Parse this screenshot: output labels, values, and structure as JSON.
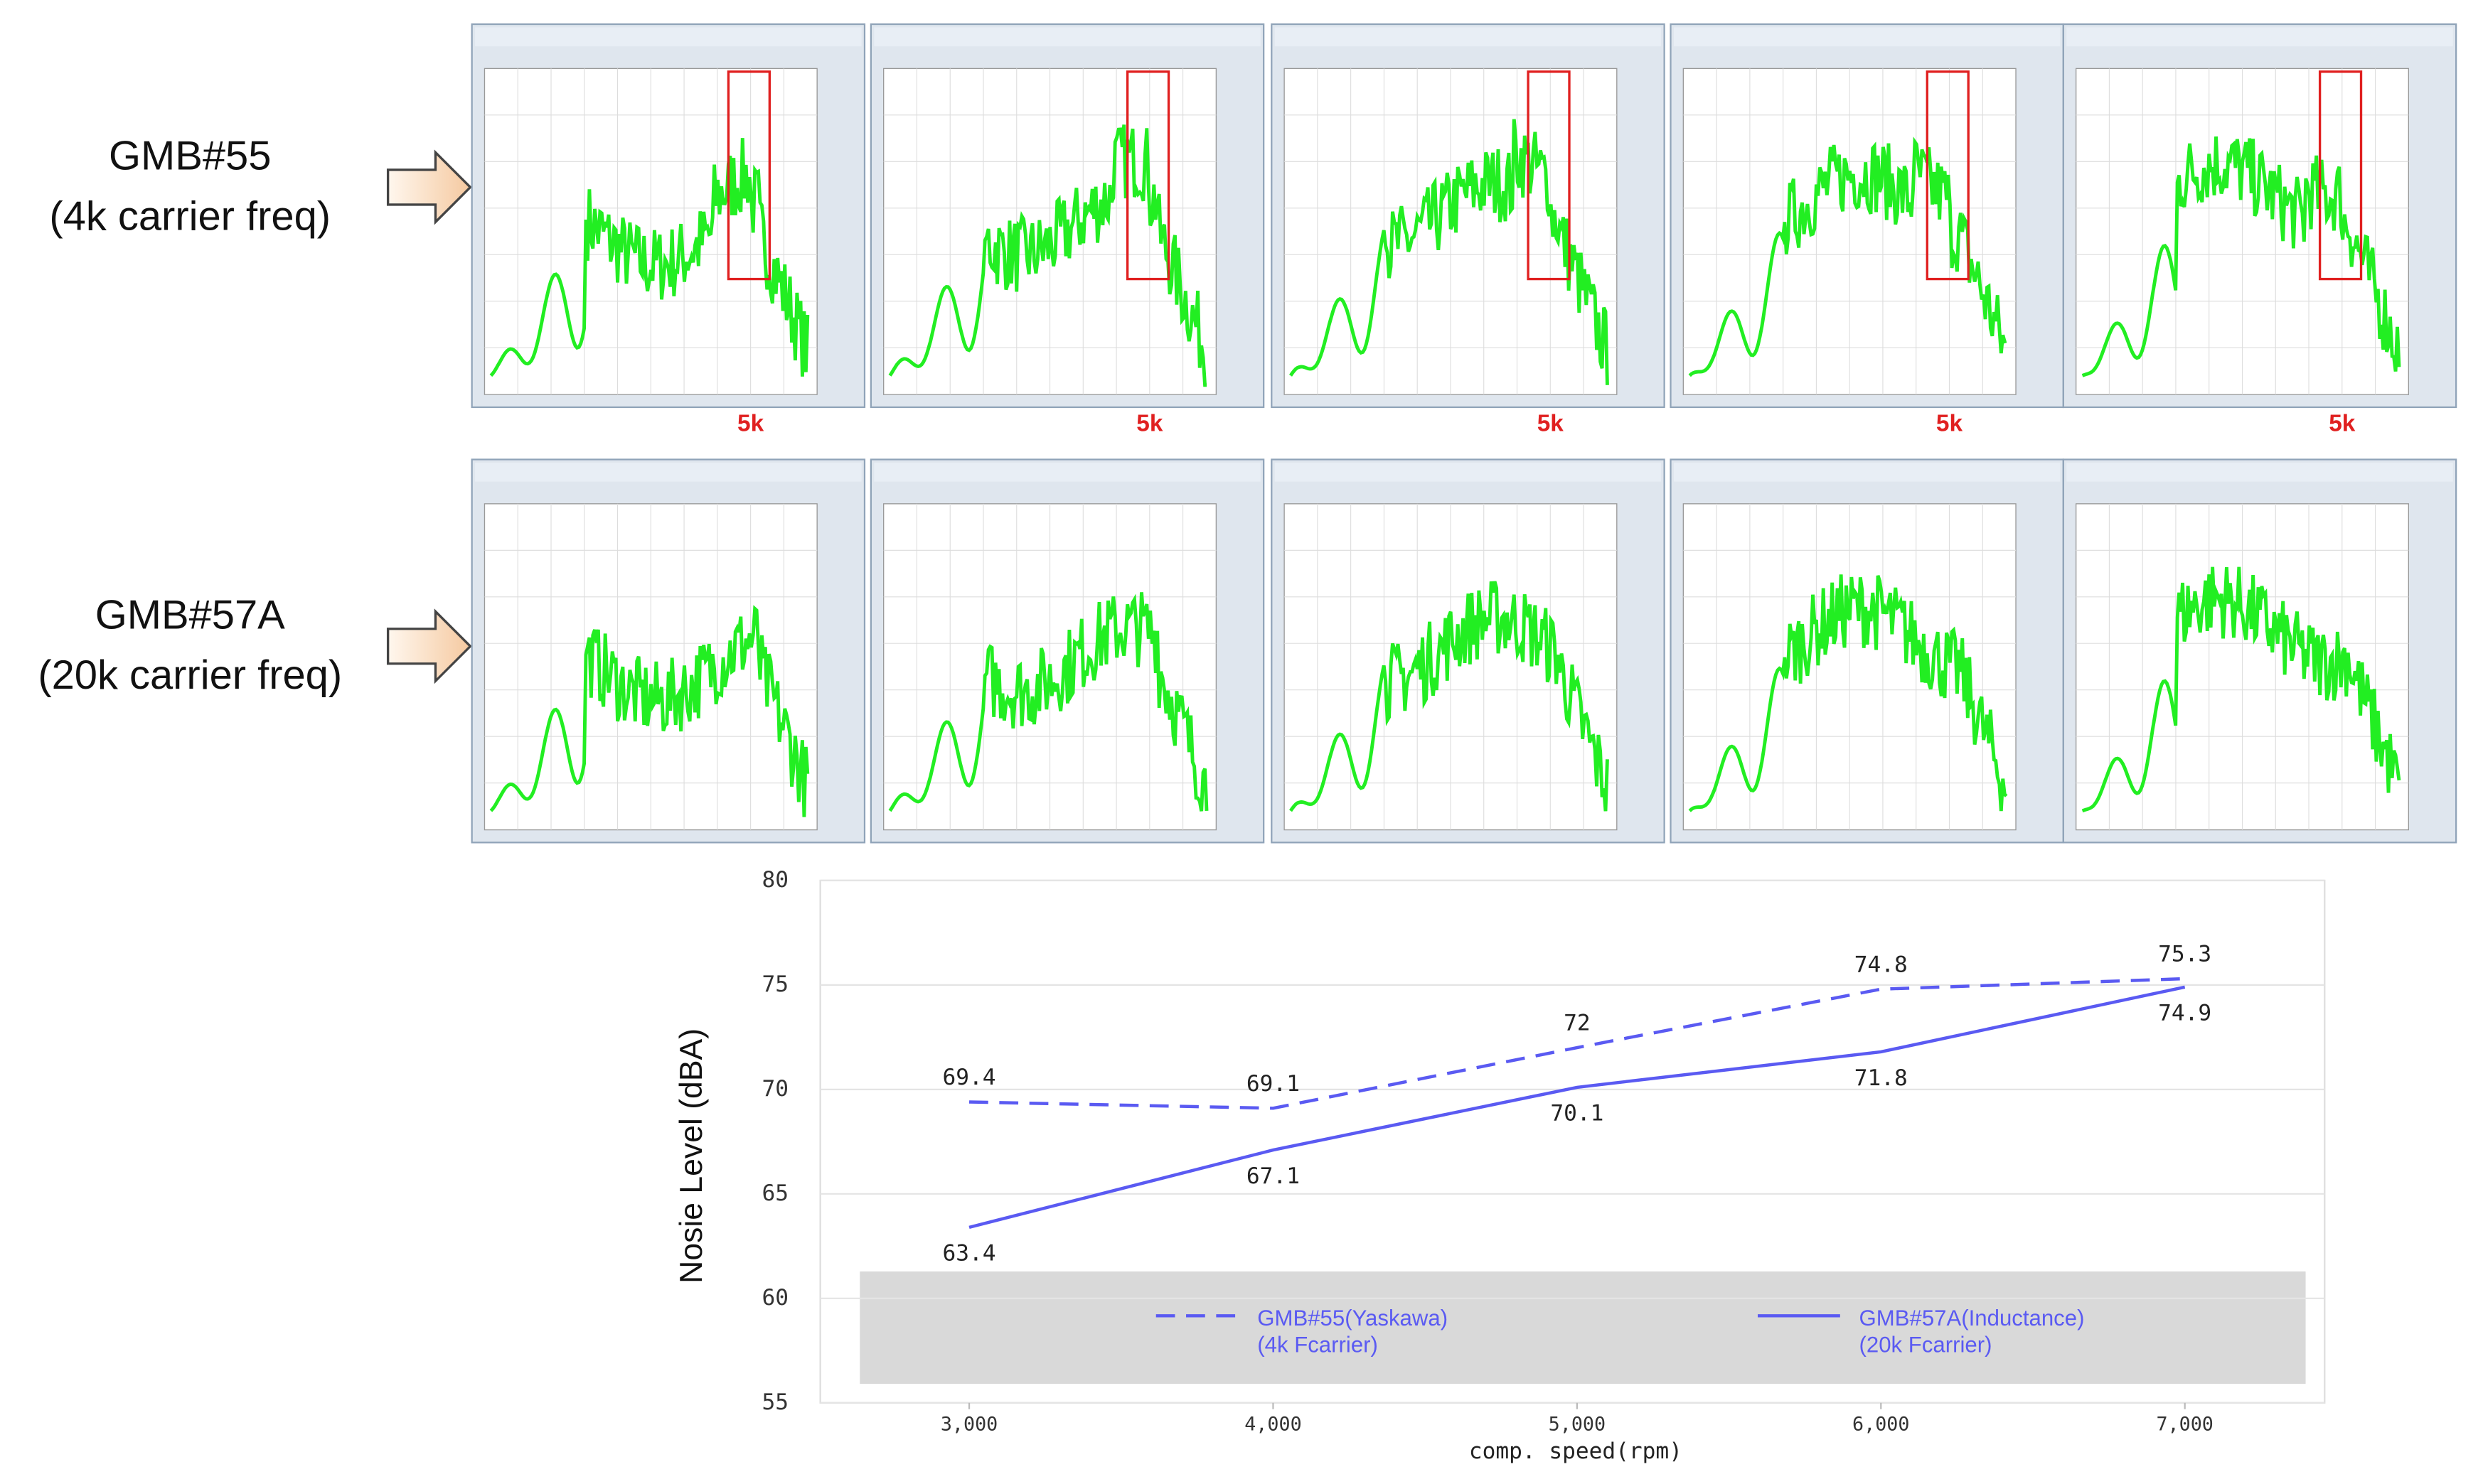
{
  "labels": {
    "row1_name": "GMB#55",
    "row1_sub": "(4k carrier freq)",
    "row2_name": "GMB#57A",
    "row2_sub": "(20k carrier freq)",
    "marker": [
      "5k",
      "5k",
      "5k",
      "5k",
      "5k"
    ]
  },
  "chart_data": {
    "type": "line",
    "x_label": "comp. speed(rpm)",
    "y_label": "Nosie Level (dBA)",
    "x": [
      3000,
      4000,
      5000,
      6000,
      7000
    ],
    "xlim": [
      2510,
      7460
    ],
    "xticks": [
      {
        "value": 3000,
        "label": "3,000"
      },
      {
        "value": 4000,
        "label": "4,000"
      },
      {
        "value": 5000,
        "label": "5,000"
      },
      {
        "value": 6000,
        "label": "6,000"
      },
      {
        "value": 7000,
        "label": "7,000"
      }
    ],
    "ylim": [
      55,
      80
    ],
    "yticks": [
      55,
      60,
      65,
      70,
      75,
      80
    ],
    "grid": true,
    "series": [
      {
        "name": "GMB#55(Yaskawa)\n(4k Fcarrier)",
        "color": "#5a5af2",
        "dash": true,
        "values": [
          69.4,
          69.1,
          72,
          74.8,
          75.3
        ]
      },
      {
        "name": "GMB#57A(Inductance)\n(20k Fcarrier)",
        "color": "#5a5af2",
        "dash": false,
        "values": [
          63.4,
          67.1,
          70.1,
          71.8,
          74.9
        ]
      }
    ]
  }
}
